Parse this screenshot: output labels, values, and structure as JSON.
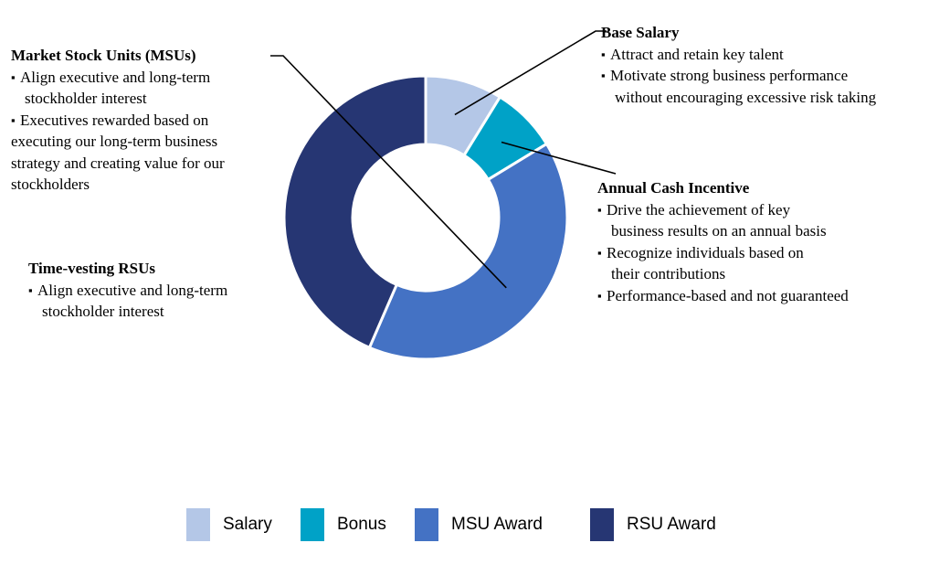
{
  "chart_data": {
    "type": "pie",
    "donut": true,
    "categories": [
      "Salary",
      "Bonus",
      "MSU Award",
      "RSU Award"
    ],
    "values": [
      8.8,
      7.5,
      40.2,
      43.5
    ],
    "colors": [
      "#b4c7e7",
      "#00a2c7",
      "#4472c4",
      "#263673"
    ],
    "legend": "bottom",
    "annotations": [
      {
        "title": "Base Salary",
        "points": [
          {
            "text": "Attract and retain key talent",
            "cont": []
          },
          {
            "text": "Motivate strong business performance",
            "cont": [
              "without encouraging excessive risk taking"
            ]
          }
        ]
      },
      {
        "title": "Annual Cash Incentive",
        "points": [
          {
            "text": "Drive the achievement of key",
            "cont": [
              "business results on an annual basis"
            ]
          },
          {
            "text": "Recognize individuals based on",
            "cont": [
              "their contributions"
            ]
          },
          {
            "text": "Performance-based and not guaranteed",
            "cont": []
          }
        ]
      },
      {
        "title": "Market Stock Units (MSUs)",
        "points": [
          {
            "text": "Align executive and long-term",
            "cont": [
              "stockholder interest"
            ]
          },
          {
            "text": "Executives rewarded based on",
            "cont": []
          }
        ],
        "tail": [
          "executing our long-term business",
          "strategy and creating value for our",
          "stockholders"
        ]
      },
      {
        "title": "Time-vesting RSUs",
        "points": [
          {
            "text": "Align executive and long-term",
            "cont": [
              "stockholder interest"
            ]
          }
        ]
      }
    ]
  }
}
